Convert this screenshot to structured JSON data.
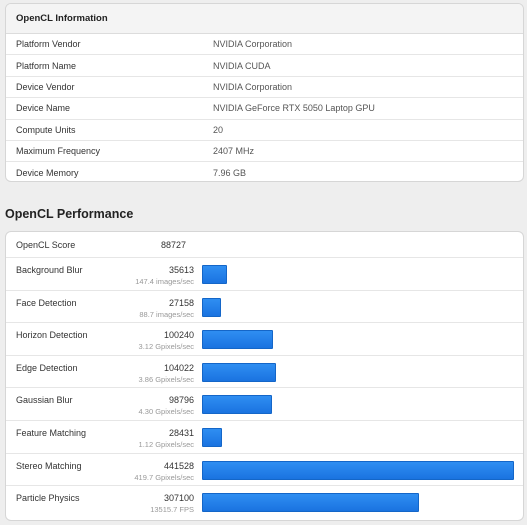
{
  "info": {
    "title": "OpenCL Information",
    "rows": [
      {
        "label": "Platform Vendor",
        "value": "NVIDIA Corporation"
      },
      {
        "label": "Platform Name",
        "value": "NVIDIA CUDA"
      },
      {
        "label": "Device Vendor",
        "value": "NVIDIA Corporation"
      },
      {
        "label": "Device Name",
        "value": "NVIDIA GeForce RTX 5050 Laptop GPU"
      },
      {
        "label": "Compute Units",
        "value": "20"
      },
      {
        "label": "Maximum Frequency",
        "value": "2407 MHz"
      },
      {
        "label": "Device Memory",
        "value": "7.96 GB"
      }
    ]
  },
  "performance": {
    "title": "OpenCL Performance",
    "score_label": "OpenCL Score",
    "score_value": "88727",
    "bar_max": 441528,
    "benchmarks": [
      {
        "name": "Background Blur",
        "score": 35613,
        "sub": "147.4 images/sec"
      },
      {
        "name": "Face Detection",
        "score": 27158,
        "sub": "88.7 images/sec"
      },
      {
        "name": "Horizon Detection",
        "score": 100240,
        "sub": "3.12 Gpixels/sec"
      },
      {
        "name": "Edge Detection",
        "score": 104022,
        "sub": "3.86 Gpixels/sec"
      },
      {
        "name": "Gaussian Blur",
        "score": 98796,
        "sub": "4.30 Gpixels/sec"
      },
      {
        "name": "Feature Matching",
        "score": 28431,
        "sub": "1.12 Gpixels/sec"
      },
      {
        "name": "Stereo Matching",
        "score": 441528,
        "sub": "419.7 Gpixels/sec"
      },
      {
        "name": "Particle Physics",
        "score": 307100,
        "sub": "13515.7 FPS"
      }
    ]
  },
  "colors": {
    "bar": "#1a73e0",
    "card_bg": "#ffffff",
    "page_bg": "#eeeeee"
  }
}
